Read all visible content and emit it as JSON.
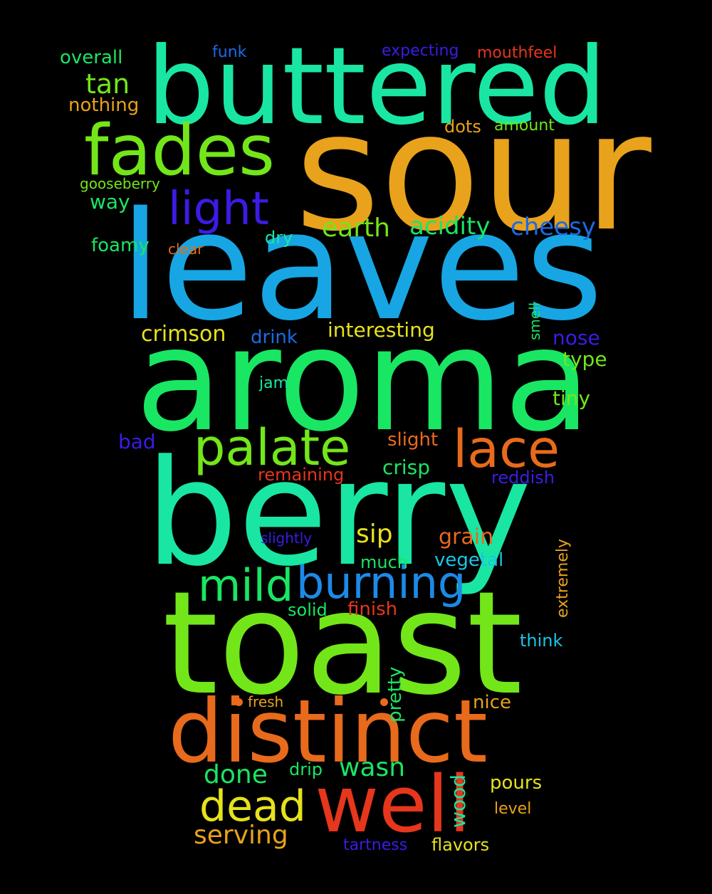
{
  "words": [
    {
      "text": "sour",
      "color": "#e8a21c"
    },
    {
      "text": "buttered",
      "color": "#19e6a3"
    },
    {
      "text": "leaves",
      "color": "#17a6e3"
    },
    {
      "text": "aroma",
      "color": "#19e663"
    },
    {
      "text": "berry",
      "color": "#19e6a3"
    },
    {
      "text": "toast",
      "color": "#73e619"
    },
    {
      "text": "distinct",
      "color": "#e86a1c"
    },
    {
      "text": "well",
      "color": "#e6361c"
    },
    {
      "text": "fades",
      "color": "#73e619"
    },
    {
      "text": "light",
      "color": "#3a1ce6"
    },
    {
      "text": "palate",
      "color": "#73e619"
    },
    {
      "text": "lace",
      "color": "#e86a1c"
    },
    {
      "text": "burning",
      "color": "#1c8ae6"
    },
    {
      "text": "mild",
      "color": "#19e663"
    },
    {
      "text": "dead",
      "color": "#e6e21c"
    },
    {
      "text": "serving",
      "color": "#e8a21c"
    },
    {
      "text": "wasn",
      "color": "#19e663"
    },
    {
      "text": "done",
      "color": "#19e663"
    },
    {
      "text": "tan",
      "color": "#73e619"
    },
    {
      "text": "earth",
      "color": "#73e619"
    },
    {
      "text": "acidity",
      "color": "#19e663"
    },
    {
      "text": "cheesy",
      "color": "#1c6ae6"
    },
    {
      "text": "crimson",
      "color": "#e6e21c"
    },
    {
      "text": "interesting",
      "color": "#e6e21c"
    },
    {
      "text": "sip",
      "color": "#e6e21c"
    },
    {
      "text": "grain",
      "color": "#e86a1c"
    },
    {
      "text": "overall",
      "color": "#19e663"
    },
    {
      "text": "funk",
      "color": "#1c6ae6"
    },
    {
      "text": "expecting",
      "color": "#3a1ce6"
    },
    {
      "text": "mouthfeel",
      "color": "#e6361c"
    },
    {
      "text": "nothing",
      "color": "#e8a21c"
    },
    {
      "text": "dots",
      "color": "#e8a21c"
    },
    {
      "text": "amount",
      "color": "#73e619"
    },
    {
      "text": "gooseberry",
      "color": "#73e619"
    },
    {
      "text": "way",
      "color": "#19e663"
    },
    {
      "text": "foamy",
      "color": "#19e663"
    },
    {
      "text": "dry",
      "color": "#19e6a3"
    },
    {
      "text": "clear",
      "color": "#e86a1c"
    },
    {
      "text": "smell",
      "color": "#19e663"
    },
    {
      "text": "drink",
      "color": "#1c6ae6"
    },
    {
      "text": "nose",
      "color": "#3a1ce6"
    },
    {
      "text": "type",
      "color": "#73e619"
    },
    {
      "text": "jam",
      "color": "#19e6a3"
    },
    {
      "text": "tiny",
      "color": "#73e619"
    },
    {
      "text": "bad",
      "color": "#3a1ce6"
    },
    {
      "text": "slight",
      "color": "#e86a1c"
    },
    {
      "text": "crisp",
      "color": "#19e663"
    },
    {
      "text": "remaining",
      "color": "#e6361c"
    },
    {
      "text": "reddish",
      "color": "#3a1ce6"
    },
    {
      "text": "slightly",
      "color": "#3a1ce6"
    },
    {
      "text": "much",
      "color": "#19e663"
    },
    {
      "text": "vegetal",
      "color": "#19c6e6"
    },
    {
      "text": "extremely",
      "color": "#e8a21c"
    },
    {
      "text": "solid",
      "color": "#19e663"
    },
    {
      "text": "finish",
      "color": "#e6361c"
    },
    {
      "text": "think",
      "color": "#19c6e6"
    },
    {
      "text": "pretty",
      "color": "#19e663"
    },
    {
      "text": "fresh",
      "color": "#e8a21c"
    },
    {
      "text": "nice",
      "color": "#e8a21c"
    },
    {
      "text": "drip",
      "color": "#19e663"
    },
    {
      "text": "wood",
      "color": "#19e6a3"
    },
    {
      "text": "pours",
      "color": "#e6e21c"
    },
    {
      "text": "level",
      "color": "#e8a21c"
    },
    {
      "text": "tartness",
      "color": "#3a1ce6"
    },
    {
      "text": "flavors",
      "color": "#e6e21c"
    }
  ]
}
